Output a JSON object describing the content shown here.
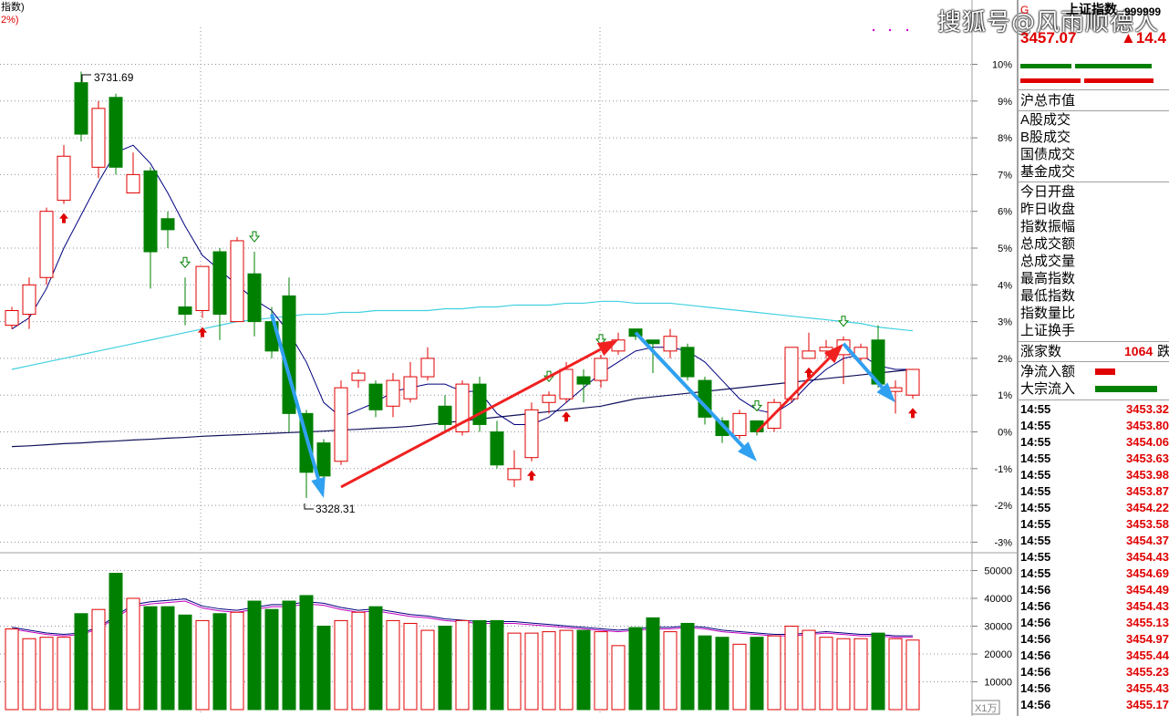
{
  "header": {
    "index_label_fragment": "指数)",
    "pct_fragment": "2%)",
    "watermark": "搜狐号@风雨顺德人",
    "title": "上证指数",
    "code": "999999",
    "g_label": "G",
    "price": "3457.07",
    "change": "▲14.4"
  },
  "price_axis": [
    "10%",
    "9%",
    "8%",
    "7%",
    "6%",
    "5%",
    "4%",
    "3%",
    "2%",
    "1%",
    "0%",
    "-1%",
    "-2%",
    "-3%"
  ],
  "volume_axis": [
    "50000",
    "40000",
    "30000",
    "20000",
    "10000"
  ],
  "volume_unit": "X1万",
  "annotations": {
    "high": "3731.69",
    "low": "3328.31"
  },
  "panel": {
    "market_cap_label": "沪总市值",
    "trade_fields": [
      "A股成交",
      "B股成交",
      "国债成交",
      "基金成交"
    ],
    "stat_fields": [
      "今日开盘",
      "昨日收盘",
      "指数振幅",
      "总成交额",
      "总成交量",
      "最高指数",
      "最低指数",
      "指数量比",
      "上证换手"
    ],
    "rising_label": "涨家数",
    "rising_value": "1064",
    "falling_fragment": "跌",
    "net_inflow_label": "净流入额",
    "block_inflow_label": "大宗流入",
    "ticks": [
      {
        "time": "14:55",
        "price": "3453.32"
      },
      {
        "time": "14:55",
        "price": "3453.80"
      },
      {
        "time": "14:55",
        "price": "3454.06"
      },
      {
        "time": "14:55",
        "price": "3453.63"
      },
      {
        "time": "14:55",
        "price": "3453.98"
      },
      {
        "time": "14:55",
        "price": "3453.87"
      },
      {
        "time": "14:55",
        "price": "3454.22"
      },
      {
        "time": "14:55",
        "price": "3453.58"
      },
      {
        "time": "14:55",
        "price": "3454.37"
      },
      {
        "time": "14:55",
        "price": "3454.43"
      },
      {
        "time": "14:55",
        "price": "3454.69"
      },
      {
        "time": "14:56",
        "price": "3454.49"
      },
      {
        "time": "14:56",
        "price": "3454.43"
      },
      {
        "time": "14:56",
        "price": "3455.13"
      },
      {
        "time": "14:56",
        "price": "3454.97"
      },
      {
        "time": "14:56",
        "price": "3455.44"
      },
      {
        "time": "14:56",
        "price": "3455.23"
      },
      {
        "time": "14:56",
        "price": "3455.43"
      },
      {
        "time": "14:56",
        "price": "3455.17"
      }
    ]
  },
  "colors": {
    "up": "#e00000",
    "down": "#008000",
    "ma5": "#00007f",
    "ma60": "#40d0e0",
    "ma_long": "#10105a",
    "vol_ma": "#c000c0",
    "arrow_red": "#f02020",
    "arrow_blue": "#30a0f0"
  },
  "chart_data": {
    "type": "candlestick",
    "y_unit": "%",
    "ylim": [
      -3.5,
      10.5
    ],
    "candles": [
      {
        "o": 2.9,
        "c": 3.3,
        "h": 3.4,
        "l": 2.8
      },
      {
        "o": 3.2,
        "c": 4.0,
        "h": 4.2,
        "l": 2.8
      },
      {
        "o": 4.2,
        "c": 6.0,
        "h": 6.1,
        "l": 4.0
      },
      {
        "o": 6.3,
        "c": 7.5,
        "h": 7.8,
        "l": 6.2
      },
      {
        "o": 9.5,
        "c": 8.1,
        "h": 9.8,
        "l": 7.9
      },
      {
        "o": 7.2,
        "c": 8.8,
        "h": 9.0,
        "l": 6.9
      },
      {
        "o": 9.1,
        "c": 7.2,
        "h": 9.2,
        "l": 7.0
      },
      {
        "o": 6.5,
        "c": 7.0,
        "h": 7.6,
        "l": 6.5
      },
      {
        "o": 7.1,
        "c": 4.9,
        "h": 7.2,
        "l": 3.9
      },
      {
        "o": 5.8,
        "c": 5.5,
        "h": 6.0,
        "l": 5.0
      },
      {
        "o": 3.4,
        "c": 3.2,
        "h": 4.2,
        "l": 2.9
      },
      {
        "o": 3.3,
        "c": 4.5,
        "h": 4.5,
        "l": 3.1
      },
      {
        "o": 4.9,
        "c": 3.2,
        "h": 5.0,
        "l": 2.5
      },
      {
        "o": 3.0,
        "c": 5.2,
        "h": 5.3,
        "l": 3.0
      },
      {
        "o": 4.3,
        "c": 3.0,
        "h": 4.9,
        "l": 2.6
      },
      {
        "o": 3.0,
        "c": 2.2,
        "h": 3.4,
        "l": 2.0
      },
      {
        "o": 3.7,
        "c": 0.5,
        "h": 4.2,
        "l": 0.0
      },
      {
        "o": 0.5,
        "c": -1.1,
        "h": 0.6,
        "l": -1.8
      },
      {
        "o": -0.3,
        "c": -1.2,
        "h": -0.2,
        "l": -1.3
      },
      {
        "o": -0.8,
        "c": 1.2,
        "h": 1.4,
        "l": -0.9
      },
      {
        "o": 1.4,
        "c": 1.6,
        "h": 1.7,
        "l": 1.2
      },
      {
        "o": 1.3,
        "c": 0.6,
        "h": 1.4,
        "l": 0.4
      },
      {
        "o": 0.7,
        "c": 1.4,
        "h": 1.6,
        "l": 0.4
      },
      {
        "o": 0.9,
        "c": 1.5,
        "h": 1.9,
        "l": 0.8
      },
      {
        "o": 1.5,
        "c": 2.0,
        "h": 2.3,
        "l": 1.4
      },
      {
        "o": 0.7,
        "c": 0.2,
        "h": 1.0,
        "l": 0.0
      },
      {
        "o": 0.0,
        "c": 1.3,
        "h": 1.4,
        "l": -0.1
      },
      {
        "o": 1.3,
        "c": 0.2,
        "h": 1.5,
        "l": 0.0
      },
      {
        "o": 0.0,
        "c": -0.9,
        "h": 0.3,
        "l": -1.0
      },
      {
        "o": -1.3,
        "c": -1.0,
        "h": -0.5,
        "l": -1.5
      },
      {
        "o": -0.7,
        "c": 0.6,
        "h": 0.8,
        "l": -0.8
      },
      {
        "o": 0.8,
        "c": 1.0,
        "h": 1.1,
        "l": 0.5
      },
      {
        "o": 0.9,
        "c": 1.7,
        "h": 1.9,
        "l": 0.8
      },
      {
        "o": 1.5,
        "c": 1.3,
        "h": 1.7,
        "l": 0.8
      },
      {
        "o": 1.4,
        "c": 2.0,
        "h": 2.1,
        "l": 1.2
      },
      {
        "o": 2.2,
        "c": 2.5,
        "h": 2.7,
        "l": 2.1
      },
      {
        "o": 2.8,
        "c": 2.6,
        "h": 2.8,
        "l": 2.5
      },
      {
        "o": 2.5,
        "c": 2.4,
        "h": 2.5,
        "l": 1.6
      },
      {
        "o": 2.2,
        "c": 2.6,
        "h": 2.8,
        "l": 2.0
      },
      {
        "o": 2.3,
        "c": 1.5,
        "h": 2.4,
        "l": 1.4
      },
      {
        "o": 1.4,
        "c": 0.4,
        "h": 1.5,
        "l": 0.2
      },
      {
        "o": 0.3,
        "c": -0.1,
        "h": 0.4,
        "l": -0.3
      },
      {
        "o": -0.1,
        "c": 0.5,
        "h": 0.6,
        "l": -0.2
      },
      {
        "o": 0.3,
        "c": 0.0,
        "h": 0.3,
        "l": -0.1
      },
      {
        "o": 0.1,
        "c": 0.8,
        "h": 0.9,
        "l": 0.0
      },
      {
        "o": 0.9,
        "c": 2.3,
        "h": 2.3,
        "l": 0.8
      },
      {
        "o": 2.0,
        "c": 2.2,
        "h": 2.7,
        "l": 2.0
      },
      {
        "o": 2.2,
        "c": 2.3,
        "h": 2.5,
        "l": 2.0
      },
      {
        "o": 2.1,
        "c": 2.5,
        "h": 2.6,
        "l": 1.3
      },
      {
        "o": 2.0,
        "c": 2.3,
        "h": 2.4,
        "l": 1.9
      },
      {
        "o": 2.5,
        "c": 1.3,
        "h": 2.9,
        "l": 1.2
      },
      {
        "o": 1.1,
        "c": 1.2,
        "h": 1.4,
        "l": 0.5
      },
      {
        "o": 1.0,
        "c": 1.7,
        "h": 1.7,
        "l": 0.9
      }
    ],
    "volumes": [
      29000,
      25500,
      26000,
      26000,
      34500,
      36000,
      49000,
      40000,
      37000,
      37000,
      34000,
      32000,
      34500,
      35000,
      39000,
      36000,
      39000,
      41000,
      30000,
      32000,
      35000,
      37000,
      32000,
      31000,
      28500,
      30000,
      32000,
      32000,
      32000,
      27500,
      27500,
      28000,
      28500,
      28500,
      28000,
      23000,
      29500,
      33000,
      28000,
      31000,
      26500,
      26000,
      23500,
      26000,
      26500,
      30000,
      28500,
      26000,
      25500,
      25500,
      27500,
      25500,
      25000
    ],
    "ma5": [
      2.8,
      3.1,
      3.9,
      5.0,
      5.9,
      6.8,
      7.6,
      7.8,
      7.3,
      6.5,
      5.6,
      4.8,
      4.4,
      4.0,
      3.6,
      3.3,
      2.7,
      1.9,
      0.8,
      0.4,
      0.6,
      0.8,
      1.1,
      1.2,
      1.3,
      1.3,
      1.1,
      1.1,
      0.5,
      0.2,
      0.2,
      0.4,
      0.8,
      1.2,
      1.6,
      1.9,
      2.2,
      2.3,
      2.3,
      2.2,
      1.9,
      1.4,
      0.9,
      0.6,
      0.5,
      0.8,
      1.3,
      1.7,
      2.0,
      2.1,
      1.8,
      1.7,
      1.7
    ],
    "ma60": [
      1.7,
      1.8,
      1.9,
      2.0,
      2.1,
      2.2,
      2.3,
      2.4,
      2.5,
      2.6,
      2.7,
      2.8,
      2.9,
      3.0,
      3.05,
      3.1,
      3.15,
      3.2,
      3.2,
      3.25,
      3.25,
      3.3,
      3.3,
      3.3,
      3.3,
      3.35,
      3.35,
      3.4,
      3.4,
      3.45,
      3.45,
      3.45,
      3.5,
      3.5,
      3.55,
      3.55,
      3.5,
      3.5,
      3.5,
      3.45,
      3.4,
      3.35,
      3.3,
      3.25,
      3.2,
      3.15,
      3.1,
      3.05,
      3.0,
      2.95,
      2.85,
      2.8,
      2.75
    ],
    "ma_long": [
      -0.4,
      -0.38,
      -0.35,
      -0.32,
      -0.3,
      -0.27,
      -0.25,
      -0.22,
      -0.2,
      -0.17,
      -0.15,
      -0.12,
      -0.1,
      -0.08,
      -0.06,
      -0.04,
      -0.02,
      0.0,
      0.02,
      0.05,
      0.07,
      0.1,
      0.12,
      0.15,
      0.2,
      0.25,
      0.3,
      0.35,
      0.4,
      0.45,
      0.5,
      0.55,
      0.6,
      0.65,
      0.7,
      0.8,
      0.9,
      0.95,
      1.0,
      1.05,
      1.1,
      1.15,
      1.2,
      1.25,
      1.3,
      1.35,
      1.4,
      1.45,
      1.5,
      1.55,
      1.6,
      1.65,
      1.7
    ],
    "vol_ma": [
      29000,
      28000,
      27000,
      26500,
      27000,
      29000,
      33000,
      37000,
      38000,
      38500,
      39000,
      36500,
      35500,
      35000,
      36000,
      37000,
      37000,
      38000,
      37500,
      36000,
      35000,
      35500,
      34500,
      33500,
      33000,
      32000,
      31500,
      31000,
      31000,
      31000,
      30500,
      30000,
      29500,
      29000,
      28500,
      28000,
      28500,
      29000,
      29000,
      29500,
      29000,
      28000,
      27500,
      27000,
      26500,
      26500,
      27000,
      27500,
      27000,
      26500,
      26500,
      26000,
      26000
    ],
    "signals_up": [
      3,
      11,
      30,
      32,
      46,
      52
    ],
    "signals_down": [
      10,
      14,
      31,
      34,
      43,
      48
    ],
    "trend_arrows": [
      {
        "color": "blue",
        "from": [
          15,
          3.2
        ],
        "to": [
          18,
          -1.8
        ]
      },
      {
        "color": "red",
        "from": [
          19,
          -1.5
        ],
        "to": [
          35,
          2.5
        ]
      },
      {
        "color": "blue",
        "from": [
          36,
          2.7
        ],
        "to": [
          43,
          -0.8
        ]
      },
      {
        "color": "red",
        "from": [
          43,
          0.0
        ],
        "to": [
          48,
          2.4
        ]
      },
      {
        "color": "blue",
        "from": [
          48,
          2.4
        ],
        "to": [
          51,
          0.8
        ]
      }
    ]
  }
}
